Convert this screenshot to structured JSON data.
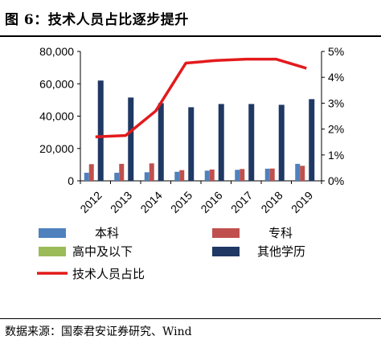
{
  "header": {
    "title": "图 6：技术人员占比逐步提升"
  },
  "footer": {
    "source": "数据来源：国泰君安证券研究、Wind"
  },
  "chart_data": {
    "type": "bar",
    "title": "",
    "categories": [
      "2012",
      "2013",
      "2014",
      "2015",
      "2016",
      "2017",
      "2018",
      "2019"
    ],
    "series": [
      {
        "name": "本科",
        "color": "#4f81bd",
        "values": [
          5000,
          5000,
          5300,
          5600,
          6300,
          6800,
          7500,
          10500
        ]
      },
      {
        "name": "专科",
        "color": "#c0504d",
        "values": [
          10300,
          10500,
          10800,
          6600,
          7000,
          7300,
          7600,
          9300
        ]
      },
      {
        "name": "高中及以下",
        "color": "#9bbb59",
        "values": [
          0,
          0,
          0,
          0,
          0,
          0,
          0,
          0
        ]
      },
      {
        "name": "其他学历",
        "color": "#1f3864",
        "values": [
          62000,
          51500,
          48000,
          45500,
          47500,
          47500,
          47000,
          50500
        ]
      }
    ],
    "line_series": {
      "name": "技术人员占比",
      "color": "#e31a1c",
      "values": [
        1.7,
        1.75,
        2.7,
        4.55,
        4.65,
        4.7,
        4.7,
        4.35
      ]
    },
    "y_left": {
      "ticks": [
        "0",
        "20,000",
        "40,000",
        "60,000",
        "80,000"
      ],
      "ylim": [
        0,
        80000
      ]
    },
    "y_right": {
      "ticks": [
        "0%",
        "1%",
        "2%",
        "3%",
        "4%",
        "5%"
      ],
      "ylim": [
        0,
        5
      ]
    },
    "legend_position": "bottom"
  }
}
